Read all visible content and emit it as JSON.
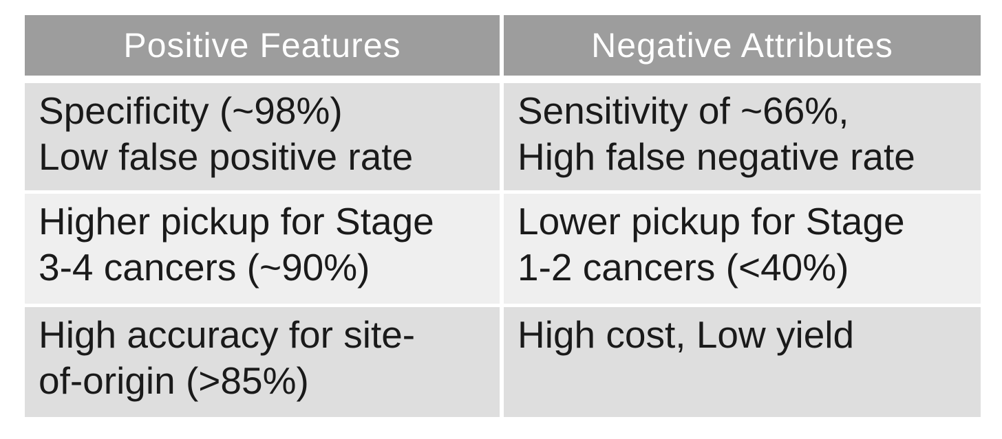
{
  "table": {
    "headers": [
      "Positive Features",
      "Negative Attributes"
    ],
    "rows": [
      {
        "positive": "Specificity (~98%)\nLow false positive rate",
        "negative": "Sensitivity of ~66%,\nHigh false negative rate"
      },
      {
        "positive": "Higher pickup for Stage\n3-4 cancers (~90%)",
        "negative": "Lower pickup for Stage\n1-2 cancers (<40%)"
      },
      {
        "positive": "High accuracy for site-\nof-origin (>85%)",
        "negative": "High cost, Low yield"
      }
    ],
    "colors": {
      "header_background": "#9d9d9d",
      "header_text": "#ffffff",
      "row_background_dark": "#dedede",
      "row_background_light": "#efefef",
      "body_text": "#1a1a1a",
      "page_background": "#ffffff"
    }
  }
}
